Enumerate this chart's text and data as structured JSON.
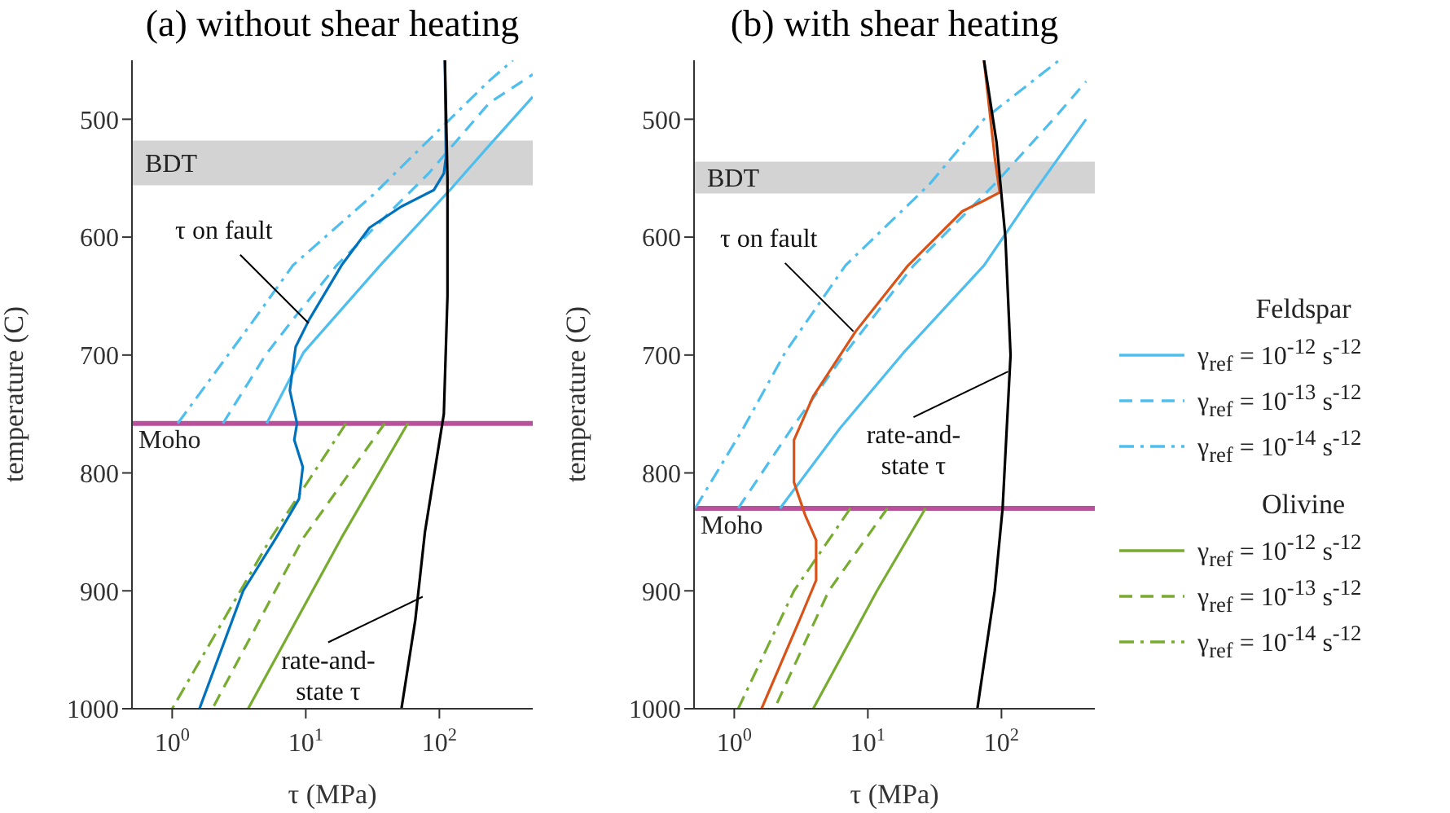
{
  "chart_data": [
    {
      "type": "line",
      "title": "(a) without shear heating",
      "xlabel": "τ (MPa)",
      "ylabel": "temperature (C)",
      "log": "x",
      "xlim": [
        0.5,
        500
      ],
      "xticks": [
        {
          "value": 1,
          "label": "10$^{0}$"
        },
        {
          "value": 10,
          "label": "10$^{1}$"
        },
        {
          "value": 100,
          "label": "10$^{2}$"
        }
      ],
      "ylim": [
        1000,
        450
      ],
      "yticks": [
        500,
        600,
        700,
        800,
        900,
        1000
      ],
      "legend": false,
      "marker": "none",
      "series": [
        {
          "color": "#4dbeee",
          "line_style": "solid",
          "x": [
            5.1,
            9.6,
            36,
            120,
            233,
            500
          ],
          "values": [
            758,
            698,
            624,
            560,
            523,
            481
          ]
        },
        {
          "color": "#4dbeee",
          "line_style": "dashed",
          "x": [
            2.4,
            5.0,
            8,
            17,
            83,
            237,
            500
          ],
          "values": [
            758,
            700,
            670,
            624,
            546,
            486,
            462
          ]
        },
        {
          "color": "#4dbeee",
          "line_style": "dashdot",
          "x": [
            1.1,
            4.1,
            8,
            32,
            120,
            233,
            355
          ],
          "values": [
            758,
            670,
            624,
            564,
            500,
            468,
            450
          ]
        },
        {
          "color": "#77ac30",
          "line_style": "solid",
          "x": [
            58,
            18.5,
            3.7
          ],
          "values": [
            758,
            855,
            1000
          ]
        },
        {
          "color": "#77ac30",
          "line_style": "dashed",
          "x": [
            39,
            9.6,
            2.0
          ],
          "values": [
            758,
            855,
            1000
          ]
        },
        {
          "color": "#77ac30",
          "line_style": "dashdot",
          "x": [
            20,
            5.5,
            1.0
          ],
          "values": [
            758,
            855,
            1000
          ]
        },
        {
          "color": "#0072bd",
          "line_style": "solid",
          "x": [
            110,
            112,
            108,
            91,
            52,
            30,
            18.5,
            10.6,
            8.4,
            7.6,
            8.6,
            8.2,
            9.5,
            8.9,
            6.0,
            3.4,
            1.6
          ],
          "values": [
            450,
            532,
            546,
            560,
            574,
            592,
            624,
            670,
            693,
            730,
            758,
            772,
            795,
            822,
            855,
            900,
            1000
          ]
        },
        {
          "color": "#000000",
          "line_style": "solid",
          "x": [
            110,
            115,
            115,
            108,
            78,
            66,
            52
          ],
          "values": [
            450,
            550,
            650,
            750,
            850,
            925,
            1000
          ]
        }
      ],
      "bands": [
        {
          "axis": "y",
          "from": 518,
          "to": 556,
          "label": "BDT",
          "color": "#d3d3d3"
        }
      ],
      "ref_lines": [
        {
          "axis": "y",
          "value": 758,
          "label": "Moho",
          "color": "#b9509b"
        }
      ],
      "annotations": [
        {
          "text": "τ on fault",
          "x": 10.5,
          "y": 673
        },
        {
          "text": "rate-and-state τ",
          "x": 75,
          "y": 905
        }
      ]
    },
    {
      "type": "line",
      "title": "(b) with shear heating",
      "xlabel": "τ (MPa)",
      "ylabel": "temperature (C)",
      "log": "x",
      "xlim": [
        0.5,
        500
      ],
      "xticks": [
        {
          "value": 1,
          "label": "10$^{0}$"
        },
        {
          "value": 10,
          "label": "10$^{1}$"
        },
        {
          "value": 100,
          "label": "10$^{2}$"
        }
      ],
      "ylim": [
        1000,
        450
      ],
      "yticks": [
        500,
        600,
        700,
        800,
        900,
        1000
      ],
      "legend": "right",
      "marker": "none",
      "series": [
        {
          "name": "γ$_{ref}$ = 10$^{-12}$ s$^{-12}$",
          "color": "#4dbeee",
          "line_style": "solid",
          "x": [
            2.2,
            6.2,
            18.5,
            74,
            170,
            430
          ],
          "values": [
            830,
            762,
            698,
            624,
            564,
            500
          ]
        },
        {
          "name": "γ$_{ref}$ = 10$^{-13}$ s$^{-12}$",
          "color": "#4dbeee",
          "line_style": "dashed",
          "x": [
            1.07,
            2.7,
            6.8,
            22,
            89,
            245,
            430
          ],
          "values": [
            830,
            762,
            698,
            624,
            555,
            500,
            468
          ]
        },
        {
          "name": "γ$_{ref}$ = 10$^{-14}$ s$^{-12}$",
          "color": "#4dbeee",
          "line_style": "dashdot",
          "x": [
            0.51,
            1.17,
            2.4,
            6.8,
            29,
            74,
            270
          ],
          "values": [
            830,
            762,
            698,
            624,
            555,
            500,
            450
          ]
        },
        {
          "name": "γ$_{ref}$ = 10$^{-12}$ s$^{-12}$",
          "color": "#77ac30",
          "line_style": "solid",
          "x": [
            27,
            11.7,
            3.9
          ],
          "values": [
            830,
            900,
            1000
          ]
        },
        {
          "name": "γ$_{ref}$ = 10$^{-13}$ s$^{-12}$",
          "color": "#77ac30",
          "line_style": "dashed",
          "x": [
            14,
            5.1,
            2.0
          ],
          "values": [
            830,
            900,
            1000
          ]
        },
        {
          "name": "γ$_{ref}$ = 10$^{-14}$ s$^{-12}$",
          "color": "#77ac30",
          "line_style": "dashdot",
          "x": [
            7.4,
            2.8,
            1.07
          ],
          "values": [
            830,
            900,
            1000
          ]
        },
        {
          "color": "#d95319",
          "line_style": "solid",
          "x": [
            74,
            89,
            97,
            74,
            51,
            20,
            8.1,
            3.9,
            2.8,
            2.8,
            3.4,
            4.1,
            4.1,
            3.1,
            1.6
          ],
          "values": [
            450,
            532,
            562,
            569,
            578,
            624,
            680,
            735,
            772,
            808,
            836,
            857,
            891,
            924,
            1000
          ]
        },
        {
          "color": "#000000",
          "line_style": "solid",
          "x": [
            74,
            92,
            107,
            117,
            102,
            89,
            66
          ],
          "values": [
            450,
            520,
            600,
            700,
            830,
            900,
            1000
          ]
        }
      ],
      "bands": [
        {
          "axis": "y",
          "from": 536,
          "to": 563,
          "label": "BDT",
          "color": "#d3d3d3"
        }
      ],
      "ref_lines": [
        {
          "axis": "y",
          "value": 830,
          "label": "Moho",
          "color": "#b9509b"
        }
      ],
      "annotations": [
        "Feldspar",
        "Olivine",
        {
          "text": "τ on fault",
          "x": 7.8,
          "y": 680
        },
        {
          "text": "rate-and-state τ",
          "x": 112,
          "y": 714
        }
      ]
    }
  ]
}
